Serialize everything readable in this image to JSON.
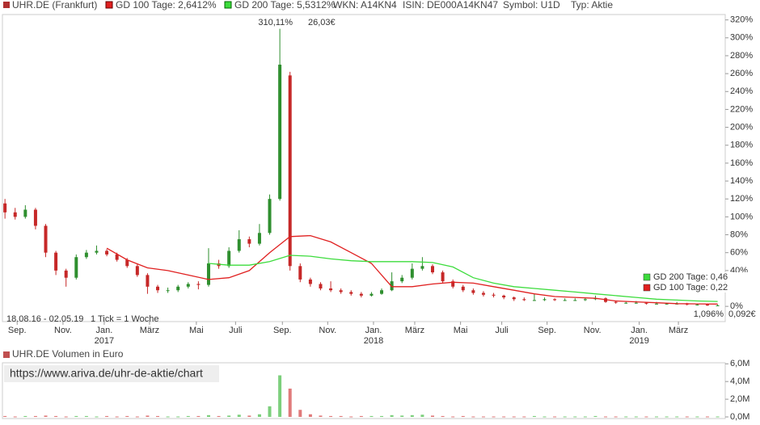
{
  "header": {
    "symbol": "UHR.DE (Frankfurt)",
    "wkn": "WKN: A14KN4",
    "isin": "ISIN: DE000A14KN47",
    "ticker": "Symbol: U1D",
    "kind": "Typ: Aktie"
  },
  "watermark": "https://www.ariva.de/uhr-de-aktie/chart",
  "chart_data": [
    {
      "type": "candlestick",
      "range_label": "18.08.16 - 02.05.19",
      "tick_label": "1 Tick = 1 Woche",
      "annotations": {
        "max_pct": "310,11%",
        "max_eur": "26,03€",
        "last_pct": "1,096%",
        "last_eur": "0,092€"
      },
      "up_color": "#2f8f2f",
      "down_color": "#c62828",
      "xlim": [
        -0.5,
        141.5
      ],
      "ylim": [
        -17,
        326
      ],
      "xticks": [
        {
          "value": 2.4,
          "label": "Sep."
        },
        {
          "value": 11.4,
          "label": "Nov."
        },
        {
          "value": 19.5,
          "label": "Jan."
        },
        {
          "value": 28.4,
          "label": "März"
        },
        {
          "value": 37.6,
          "label": "Mai"
        },
        {
          "value": 45.3,
          "label": "Juli"
        },
        {
          "value": 54.5,
          "label": "Sep."
        },
        {
          "value": 63.4,
          "label": "Nov."
        },
        {
          "value": 72.4,
          "label": "Jan."
        },
        {
          "value": 80.5,
          "label": "März"
        },
        {
          "value": 89.5,
          "label": "Mai"
        },
        {
          "value": 97.6,
          "label": "Juli"
        },
        {
          "value": 106.5,
          "label": "Sep."
        },
        {
          "value": 115.4,
          "label": "Nov."
        },
        {
          "value": 124.6,
          "label": "Jan."
        },
        {
          "value": 132.3,
          "label": "März"
        }
      ],
      "year_labels": [
        {
          "value": 19.5,
          "label": "2017"
        },
        {
          "value": 72.4,
          "label": "2018"
        },
        {
          "value": 124.6,
          "label": "2019"
        }
      ],
      "yticks": [
        {
          "value": 0,
          "label": "0%"
        },
        {
          "value": 20,
          "label": "20%"
        },
        {
          "value": 40,
          "label": "40%"
        },
        {
          "value": 60,
          "label": "60%"
        },
        {
          "value": 80,
          "label": "80%"
        },
        {
          "value": 100,
          "label": "100%"
        },
        {
          "value": 120,
          "label": "120%"
        },
        {
          "value": 140,
          "label": "140%"
        },
        {
          "value": 160,
          "label": "160%"
        },
        {
          "value": 180,
          "label": "180%"
        },
        {
          "value": 200,
          "label": "200%"
        },
        {
          "value": 220,
          "label": "220%"
        },
        {
          "value": 240,
          "label": "240%"
        },
        {
          "value": 260,
          "label": "260%"
        },
        {
          "value": 280,
          "label": "280%"
        },
        {
          "value": 300,
          "label": "300%"
        },
        {
          "value": 320,
          "label": "320%"
        }
      ],
      "x": [
        0,
        2,
        4,
        6,
        8,
        10,
        12,
        14,
        16,
        18,
        20,
        22,
        24,
        26,
        28,
        30,
        32,
        34,
        36,
        38,
        40,
        42,
        44,
        46,
        48,
        50,
        52,
        54,
        56,
        58,
        60,
        62,
        64,
        66,
        68,
        70,
        72,
        74,
        76,
        78,
        80,
        82,
        84,
        86,
        88,
        90,
        92,
        94,
        96,
        98,
        100,
        102,
        104,
        106,
        108,
        110,
        112,
        114,
        116,
        118,
        120,
        122,
        124,
        126,
        128,
        130,
        132,
        134,
        136,
        138,
        140
      ],
      "open": [
        115,
        105,
        100,
        108,
        90,
        60,
        40,
        32,
        55,
        60,
        62,
        58,
        52,
        45,
        35,
        22,
        18,
        18,
        22,
        25,
        24,
        48,
        45,
        62,
        75,
        70,
        82,
        120,
        258,
        45,
        30,
        25,
        20,
        18,
        16,
        14,
        12,
        14,
        18,
        28,
        32,
        42,
        45,
        38,
        28,
        22,
        18,
        15,
        13,
        12,
        10,
        8,
        7,
        7,
        8,
        7,
        7,
        7,
        8,
        9,
        5,
        4,
        4,
        4,
        3,
        3,
        3,
        3,
        2,
        2,
        1
      ],
      "high": [
        120,
        110,
        113,
        110,
        92,
        62,
        42,
        58,
        63,
        68,
        64,
        60,
        54,
        47,
        37,
        24,
        21,
        24,
        27,
        28,
        65,
        52,
        66,
        85,
        78,
        92,
        125,
        310.11,
        262,
        48,
        32,
        27,
        28,
        20,
        18,
        16,
        16,
        20,
        38,
        35,
        48,
        55,
        47,
        40,
        30,
        24,
        20,
        17,
        15,
        13,
        11,
        10,
        14,
        10,
        9,
        9,
        9,
        10,
        12,
        10,
        6,
        5,
        6,
        5,
        5,
        4,
        5,
        4,
        3,
        3,
        2
      ],
      "low": [
        98,
        97,
        98,
        86,
        55,
        35,
        22,
        30,
        53,
        58,
        56,
        50,
        43,
        33,
        14,
        15,
        15,
        16,
        20,
        19,
        22,
        42,
        43,
        60,
        66,
        68,
        80,
        118,
        40,
        27,
        22,
        18,
        16,
        14,
        12,
        10,
        11,
        13,
        17,
        26,
        30,
        40,
        36,
        26,
        20,
        16,
        13,
        11,
        10,
        8,
        6,
        6,
        6,
        6,
        6,
        6,
        6,
        6,
        7,
        4,
        3,
        3,
        3,
        2,
        2,
        2,
        2,
        1,
        1,
        0.5,
        0.5
      ],
      "close": [
        105,
        100,
        108,
        90,
        60,
        40,
        32,
        55,
        60,
        62,
        58,
        52,
        45,
        35,
        22,
        18,
        18,
        22,
        25,
        24,
        48,
        45,
        62,
        75,
        70,
        82,
        120,
        270,
        45,
        30,
        25,
        20,
        18,
        16,
        14,
        12,
        14,
        18,
        28,
        32,
        42,
        45,
        38,
        28,
        22,
        18,
        15,
        13,
        12,
        10,
        8,
        7,
        7,
        8,
        7,
        7,
        7,
        8,
        9,
        5,
        4,
        4,
        4,
        3,
        3,
        3,
        3,
        2,
        2,
        1,
        1.1
      ],
      "series": [
        {
          "name": "GD 100 Tage: 2,6412%",
          "label_right": "GD 100 Tage: 0,22",
          "color": "#e02020",
          "x": [
            20,
            24,
            28,
            32,
            36,
            40,
            44,
            48,
            52,
            56,
            60,
            64,
            68,
            72,
            76,
            80,
            84,
            88,
            92,
            96,
            100,
            104,
            108,
            112,
            116,
            120,
            124,
            128,
            132,
            136,
            140
          ],
          "values": [
            65,
            52,
            43,
            40,
            35,
            30,
            32,
            40,
            60,
            78,
            79,
            72,
            60,
            48,
            22,
            22,
            25,
            27,
            26,
            22,
            18,
            14,
            11,
            10,
            9,
            6,
            5,
            4,
            3,
            2.8,
            2.6
          ]
        },
        {
          "name": "GD 200 Tage: 5,5312%",
          "label_right": "GD 200 Tage: 0,46",
          "color": "#3ddc3d",
          "x": [
            40,
            44,
            48,
            52,
            56,
            60,
            64,
            68,
            72,
            76,
            80,
            84,
            88,
            92,
            96,
            100,
            104,
            108,
            112,
            116,
            120,
            124,
            128,
            132,
            136,
            140
          ],
          "values": [
            48,
            46,
            46,
            50,
            57,
            56,
            53,
            51,
            50,
            50,
            50,
            49,
            44,
            32,
            26,
            22,
            20,
            18,
            16,
            14,
            12,
            10,
            8,
            7,
            6,
            5.5
          ]
        }
      ]
    },
    {
      "type": "bar",
      "title": "UHR.DE Volumen in Euro",
      "up_color": "#7ccf7c",
      "down_color": "#e07a7a",
      "title_color": "#c05050",
      "xlim": [
        -0.5,
        141.5
      ],
      "ylim": [
        0,
        6.3
      ],
      "yticks": [
        {
          "value": 0,
          "label": "0,0M"
        },
        {
          "value": 2,
          "label": "2,0M"
        },
        {
          "value": 4,
          "label": "4,0M"
        },
        {
          "value": 6,
          "label": "6,0M"
        }
      ],
      "x": [
        0,
        2,
        4,
        6,
        8,
        10,
        12,
        14,
        16,
        18,
        20,
        22,
        24,
        26,
        28,
        30,
        32,
        34,
        36,
        38,
        40,
        42,
        44,
        46,
        48,
        50,
        52,
        54,
        56,
        58,
        60,
        62,
        64,
        66,
        68,
        70,
        72,
        74,
        76,
        78,
        80,
        82,
        84,
        86,
        88,
        90,
        92,
        94,
        96,
        98,
        100,
        102,
        104,
        106,
        108,
        110,
        112,
        114,
        116,
        118,
        120,
        122,
        124,
        126,
        128,
        130,
        132,
        134,
        136,
        138,
        140
      ],
      "values": [
        0.1,
        0.05,
        0.1,
        0.1,
        0.15,
        0.1,
        0.05,
        0.1,
        0.1,
        0.05,
        0.1,
        0.05,
        0.1,
        0.05,
        0.15,
        0.1,
        0.05,
        0.05,
        0.1,
        0.1,
        0.2,
        0.1,
        0.15,
        0.25,
        0.15,
        0.3,
        1.2,
        4.7,
        3.2,
        0.8,
        0.3,
        0.15,
        0.1,
        0.1,
        0.05,
        0.1,
        0.1,
        0.1,
        0.2,
        0.15,
        0.2,
        0.25,
        0.15,
        0.1,
        0.05,
        0.1,
        0.05,
        0.05,
        0.05,
        0.05,
        0.05,
        0.05,
        0.1,
        0.05,
        0.05,
        0.05,
        0.05,
        0.05,
        0.1,
        0.05,
        0.05,
        0.05,
        0.05,
        0.05,
        0.05,
        0.05,
        0.05,
        0.05,
        0.05,
        0.05,
        0.05
      ]
    }
  ]
}
